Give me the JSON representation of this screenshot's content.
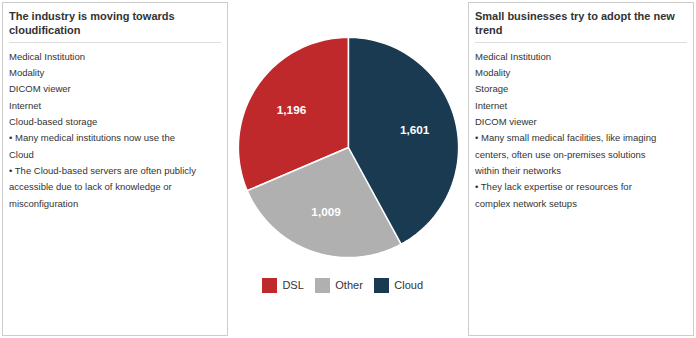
{
  "chart_data": {
    "type": "pie",
    "categories": [
      "DSL",
      "Other",
      "Cloud"
    ],
    "values": [
      1196,
      1009,
      1601
    ],
    "value_labels": [
      "1,196",
      "1,009",
      "1,601"
    ],
    "colors": [
      "#c0292b",
      "#b0b0b0",
      "#1a3a52"
    ],
    "data_labels": true,
    "legend": "bottom",
    "annotations": [
      [
        "The industry is moving towards cloudification",
        "Medical Institution",
        "Modality",
        "DICOM viewer",
        "Internet",
        "Cloud-based storage",
        "• Many medical institutions now use the",
        "Cloud",
        "• The Cloud-based servers are often publicly",
        "accessible due to lack of knowledge or",
        "misconfiguration"
      ],
      [
        "Small businesses try to adopt the new trend",
        "Medical Institution",
        "Modality",
        "Storage",
        "Internet",
        "DICOM viewer",
        "• Many small medical facilities, like imaging",
        "centers, often use on-premises solutions",
        "within their networks",
        "• They lack expertise or resources for",
        "complex network setups"
      ]
    ]
  }
}
